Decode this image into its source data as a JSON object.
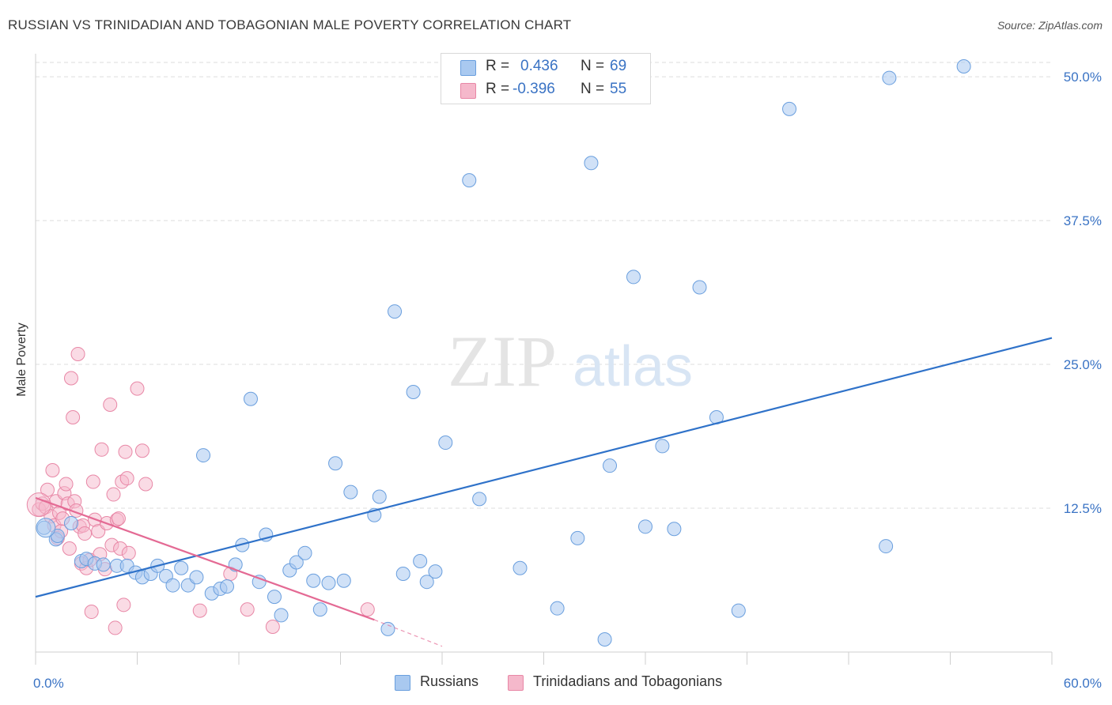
{
  "title": "RUSSIAN VS TRINIDADIAN AND TOBAGONIAN MALE POVERTY CORRELATION CHART",
  "source": "Source: ZipAtlas.com",
  "watermark": {
    "zip": "ZIP",
    "atlas": "atlas"
  },
  "legend_top": {
    "rows": [
      {
        "r_label": "R =",
        "r_value": "0.436",
        "n_label": "N =",
        "n_value": "69",
        "color": "#a9c9f0"
      },
      {
        "r_label": "R =",
        "r_value": "-0.396",
        "n_label": "N =",
        "n_value": "55",
        "color": "#f5b8cb"
      }
    ]
  },
  "colors": {
    "blue_fill": "#a9c9f0",
    "blue_stroke": "#6a9fde",
    "blue_line": "#2f72c9",
    "pink_fill": "#f5b8cb",
    "pink_stroke": "#e887a6",
    "pink_line": "#e46a94",
    "tick_label": "#3a73c4",
    "grid": "#dedede"
  },
  "chart_data": {
    "type": "scatter",
    "title": "RUSSIAN VS TRINIDADIAN AND TOBAGONIAN MALE POVERTY CORRELATION CHART",
    "xlabel": "",
    "ylabel": "Male Poverty",
    "xlim": [
      0,
      60
    ],
    "ylim": [
      0,
      52
    ],
    "x_tick_labels": [
      {
        "value": 0,
        "label": "0.0%"
      },
      {
        "value": 60,
        "label": "60.0%"
      }
    ],
    "y_tick_labels": [
      {
        "value": 12.5,
        "label": "12.5%"
      },
      {
        "value": 25,
        "label": "25.0%"
      },
      {
        "value": 37.5,
        "label": "37.5%"
      },
      {
        "value": 50,
        "label": "50.0%"
      }
    ],
    "grid": true,
    "legend_position": "bottom",
    "series": [
      {
        "name": "Russians",
        "color": "#a9c9f0",
        "trend": {
          "x": [
            0,
            60
          ],
          "y": [
            4.8,
            27.3
          ]
        },
        "points": [
          [
            0.5,
            10.8
          ],
          [
            1.2,
            9.8
          ],
          [
            1.3,
            10.1
          ],
          [
            2.1,
            11.2
          ],
          [
            2.7,
            7.9
          ],
          [
            3.0,
            8.1
          ],
          [
            3.5,
            7.7
          ],
          [
            4.0,
            7.6
          ],
          [
            4.8,
            7.5
          ],
          [
            5.4,
            7.5
          ],
          [
            5.9,
            6.9
          ],
          [
            6.3,
            6.5
          ],
          [
            6.8,
            6.8
          ],
          [
            7.2,
            7.5
          ],
          [
            7.7,
            6.6
          ],
          [
            8.1,
            5.8
          ],
          [
            8.6,
            7.3
          ],
          [
            9.0,
            5.8
          ],
          [
            9.5,
            6.5
          ],
          [
            9.9,
            17.1
          ],
          [
            10.4,
            5.1
          ],
          [
            10.9,
            5.5
          ],
          [
            11.3,
            5.7
          ],
          [
            11.8,
            7.6
          ],
          [
            12.2,
            9.3
          ],
          [
            12.7,
            22.0
          ],
          [
            13.2,
            6.1
          ],
          [
            13.6,
            10.2
          ],
          [
            14.1,
            4.8
          ],
          [
            14.5,
            3.2
          ],
          [
            15.0,
            7.1
          ],
          [
            15.4,
            7.8
          ],
          [
            15.9,
            8.6
          ],
          [
            16.4,
            6.2
          ],
          [
            16.8,
            3.7
          ],
          [
            17.3,
            6.0
          ],
          [
            17.7,
            16.4
          ],
          [
            18.2,
            6.2
          ],
          [
            18.6,
            13.9
          ],
          [
            20.0,
            11.9
          ],
          [
            20.3,
            13.5
          ],
          [
            20.8,
            2.0
          ],
          [
            21.2,
            29.6
          ],
          [
            21.7,
            6.8
          ],
          [
            22.3,
            22.6
          ],
          [
            22.7,
            7.9
          ],
          [
            23.1,
            6.1
          ],
          [
            23.6,
            7.0
          ],
          [
            24.2,
            18.2
          ],
          [
            25.6,
            41.0
          ],
          [
            26.2,
            13.3
          ],
          [
            26.6,
            49.8
          ],
          [
            28.6,
            7.3
          ],
          [
            30.8,
            3.8
          ],
          [
            32.0,
            9.9
          ],
          [
            32.8,
            42.5
          ],
          [
            33.9,
            16.2
          ],
          [
            35.3,
            32.6
          ],
          [
            36.0,
            10.9
          ],
          [
            37.0,
            17.9
          ],
          [
            37.7,
            10.7
          ],
          [
            39.2,
            31.7
          ],
          [
            40.2,
            20.4
          ],
          [
            41.5,
            3.6
          ],
          [
            50.2,
            9.2
          ],
          [
            50.4,
            49.9
          ],
          [
            33.6,
            1.1
          ],
          [
            44.5,
            47.2
          ],
          [
            54.8,
            50.9
          ]
        ]
      },
      {
        "name": "Trinidadians and Tobagonians",
        "color": "#f5b8cb",
        "trend": {
          "x": [
            0,
            20
          ],
          "y": [
            13.4,
            2.8
          ]
        },
        "trend_dashed_to": {
          "x": 24,
          "y": 0.5
        },
        "points": [
          [
            0.2,
            12.4
          ],
          [
            0.4,
            12.9
          ],
          [
            0.6,
            12.6
          ],
          [
            0.7,
            14.1
          ],
          [
            0.9,
            11.8
          ],
          [
            1.0,
            15.8
          ],
          [
            1.1,
            11.0
          ],
          [
            1.2,
            13.1
          ],
          [
            1.3,
            9.9
          ],
          [
            1.4,
            12.1
          ],
          [
            1.5,
            10.5
          ],
          [
            1.6,
            11.6
          ],
          [
            1.7,
            13.8
          ],
          [
            1.8,
            14.6
          ],
          [
            1.9,
            12.9
          ],
          [
            2.0,
            9.0
          ],
          [
            2.1,
            23.8
          ],
          [
            2.2,
            20.4
          ],
          [
            2.3,
            13.1
          ],
          [
            2.4,
            12.3
          ],
          [
            2.5,
            25.9
          ],
          [
            2.6,
            10.9
          ],
          [
            2.7,
            7.7
          ],
          [
            2.8,
            11.0
          ],
          [
            2.9,
            10.3
          ],
          [
            3.0,
            7.3
          ],
          [
            3.2,
            8.0
          ],
          [
            3.3,
            3.5
          ],
          [
            3.4,
            14.8
          ],
          [
            3.5,
            11.5
          ],
          [
            3.7,
            10.5
          ],
          [
            3.8,
            8.5
          ],
          [
            3.9,
            17.6
          ],
          [
            4.1,
            7.2
          ],
          [
            4.2,
            11.2
          ],
          [
            4.4,
            21.5
          ],
          [
            4.5,
            9.3
          ],
          [
            4.6,
            13.7
          ],
          [
            4.7,
            2.1
          ],
          [
            4.8,
            11.5
          ],
          [
            4.9,
            11.6
          ],
          [
            5.0,
            9.0
          ],
          [
            5.1,
            14.8
          ],
          [
            5.2,
            4.1
          ],
          [
            5.3,
            17.4
          ],
          [
            5.4,
            15.1
          ],
          [
            5.5,
            8.6
          ],
          [
            6.0,
            22.9
          ],
          [
            6.3,
            17.5
          ],
          [
            6.5,
            14.6
          ],
          [
            9.7,
            3.6
          ],
          [
            11.5,
            6.8
          ],
          [
            12.5,
            3.7
          ],
          [
            14.0,
            2.2
          ],
          [
            19.6,
            3.7
          ]
        ]
      }
    ]
  },
  "legend_bottom": [
    {
      "label": "Russians",
      "color": "#a9c9f0"
    },
    {
      "label": "Trinidadians and Tobagonians",
      "color": "#f5b8cb"
    }
  ]
}
